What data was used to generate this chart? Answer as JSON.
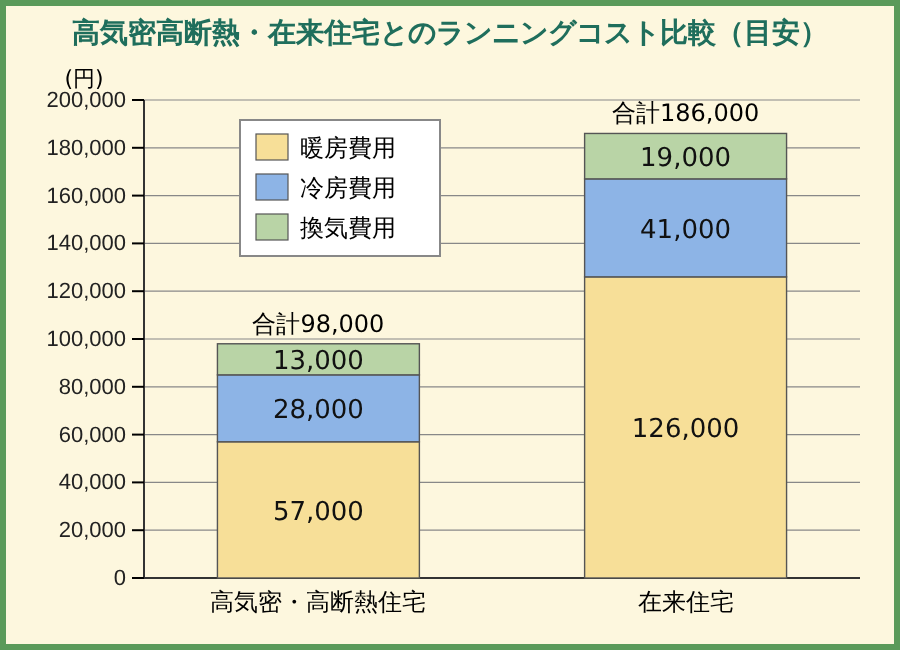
{
  "chart_data": {
    "type": "bar",
    "stacked": true,
    "title": "高気密高断熱・在来住宅とのランニングコスト比較（目安）",
    "ylabel": "(円)",
    "categories": [
      "高気密・高断熱住宅",
      "在来住宅"
    ],
    "series": [
      {
        "name": "暖房費用",
        "color": "#f7df98",
        "values": [
          57000,
          126000
        ],
        "value_labels": [
          "57,000",
          "126,000"
        ]
      },
      {
        "name": "冷房費用",
        "color": "#8db4e6",
        "values": [
          28000,
          41000
        ],
        "value_labels": [
          "28,000",
          "41,000"
        ]
      },
      {
        "name": "換気費用",
        "color": "#b9d4a6",
        "values": [
          13000,
          19000
        ],
        "value_labels": [
          "13,000",
          "19,000"
        ]
      }
    ],
    "totals": [
      "合計98,000",
      "合計186,000"
    ],
    "ylim": [
      0,
      200000
    ],
    "yticks": [
      0,
      {
        "value": 20000,
        "label": "20,000"
      },
      {
        "value": 40000,
        "label": "40,000"
      },
      {
        "value": 60000,
        "label": "60,000"
      },
      {
        "value": 80000,
        "label": "80,000"
      },
      {
        "value": 100000,
        "label": "100,000"
      },
      {
        "value": 120000,
        "label": "120,000"
      },
      {
        "value": 140000,
        "label": "140,000"
      },
      {
        "value": 160000,
        "label": "160,000"
      },
      {
        "value": 180000,
        "label": "180,000"
      },
      {
        "value": 200000,
        "label": "200,000"
      }
    ],
    "grid": "y",
    "legend": "top left"
  }
}
